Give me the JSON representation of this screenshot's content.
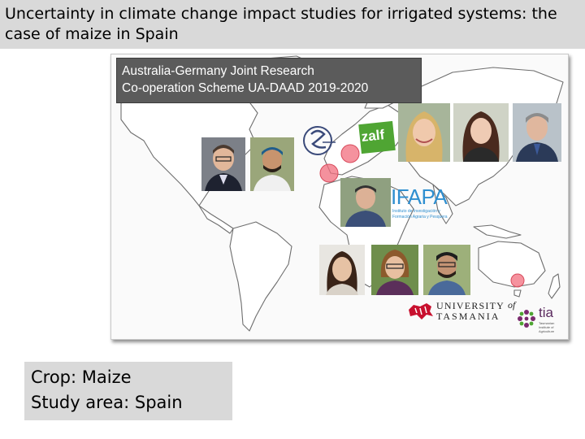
{
  "slide": {
    "title_line1": "Uncertainty in climate change impact studies for irrigated systems: the",
    "title_line2": "case of maize in Spain"
  },
  "banner": {
    "line1": "Australia-Germany Joint Research",
    "line2": "Co-operation Scheme UA-DAAD 2019-2020"
  },
  "logos": {
    "zalf": "zalf",
    "ifapa": "IFAPA",
    "ifapa_sub1": "Instituto de Investigación y",
    "ifapa_sub2": "Formación Agraria y Pesquera",
    "utas_line1": "UNIVERSITY",
    "utas_of": "of",
    "utas_line2": "TASMANIA",
    "tia": "tia",
    "tia_sub1": "Tasmanian",
    "tia_sub2": "Institute of",
    "tia_sub3": "Agriculture"
  },
  "info": {
    "crop": "Crop: Maize",
    "area": "Study area: Spain"
  },
  "colors": {
    "title_band": "#d9d9d9",
    "banner_bg": "#5b5b5b",
    "zalf_green": "#4fa533",
    "ifapa_blue": "#2f8fd0",
    "utas_red": "#c8102e",
    "marker_red": "#f26d7d"
  }
}
